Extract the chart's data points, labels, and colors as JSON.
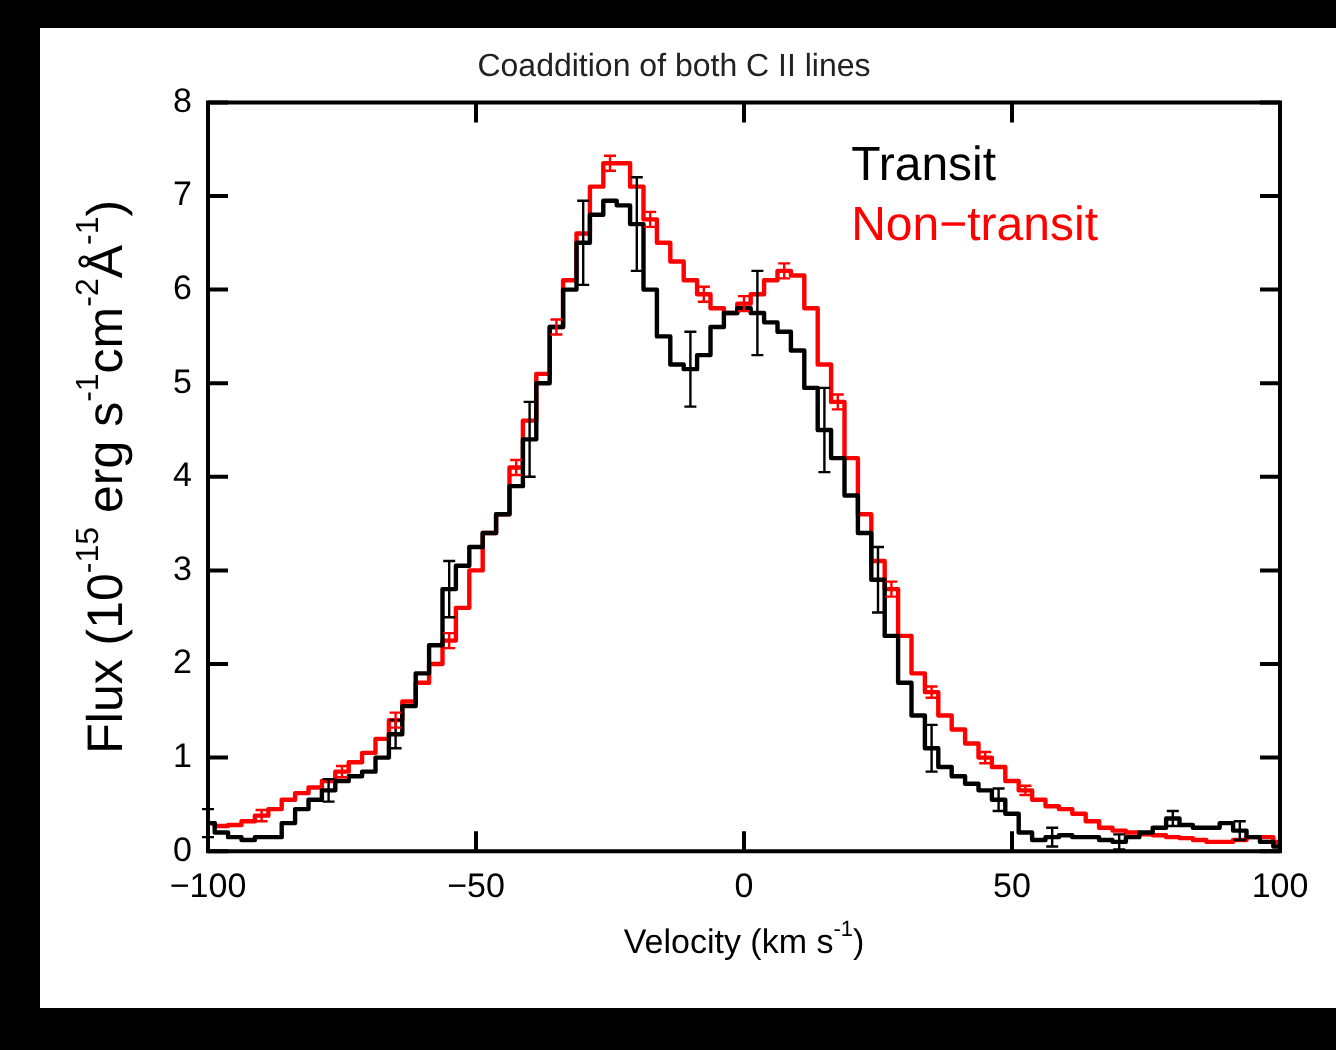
{
  "chart_data": {
    "type": "step",
    "title": "Coaddition of both C II lines",
    "xlabel": "Velocity (km s$^{-1}$)",
    "ylabel": "Flux (10$^{-15}$ erg s$^{-1}$cm$^{-2}$Å$^{-1}$)",
    "x": [
      -100,
      -97.5,
      -95,
      -92.5,
      -90,
      -87.5,
      -85,
      -82.5,
      -80,
      -77.5,
      -75,
      -72.5,
      -70,
      -67.5,
      -65,
      -62.5,
      -60,
      -57.5,
      -55,
      -52.5,
      -50,
      -47.5,
      -45,
      -42.5,
      -40,
      -37.5,
      -35,
      -32.5,
      -30,
      -27.5,
      -25,
      -22.5,
      -20,
      -17.5,
      -15,
      -12.5,
      -10,
      -7.5,
      -5,
      -2.5,
      0,
      2.5,
      5,
      7.5,
      10,
      12.5,
      15,
      17.5,
      20,
      22.5,
      25,
      27.5,
      30,
      32.5,
      35,
      37.5,
      40,
      42.5,
      45,
      47.5,
      50,
      52.5,
      55,
      57.5,
      60,
      62.5,
      65,
      67.5,
      70,
      72.5,
      75,
      77.5,
      80,
      82.5,
      85,
      87.5,
      90,
      92.5,
      95,
      97.5,
      100
    ],
    "series": [
      {
        "name": "Transit",
        "color": "#000000",
        "values": [
          0.3,
          0.2,
          0.15,
          0.12,
          0.15,
          0.15,
          0.3,
          0.45,
          0.55,
          0.65,
          0.75,
          0.8,
          0.85,
          1.0,
          1.25,
          1.55,
          1.9,
          2.2,
          2.8,
          3.05,
          3.25,
          3.4,
          3.6,
          3.9,
          4.4,
          5.0,
          5.6,
          6.0,
          6.5,
          6.8,
          6.95,
          6.9,
          6.7,
          6.0,
          5.5,
          5.2,
          5.15,
          5.3,
          5.6,
          5.75,
          5.8,
          5.75,
          5.65,
          5.55,
          5.35,
          4.95,
          4.5,
          4.2,
          3.8,
          3.4,
          2.9,
          2.3,
          1.8,
          1.45,
          1.1,
          0.9,
          0.8,
          0.72,
          0.65,
          0.55,
          0.4,
          0.2,
          0.12,
          0.15,
          0.17,
          0.15,
          0.15,
          0.12,
          0.1,
          0.15,
          0.2,
          0.25,
          0.35,
          0.28,
          0.25,
          0.25,
          0.3,
          0.22,
          0.15,
          0.1,
          0.05
        ],
        "errors": [
          0.15,
          null,
          null,
          null,
          null,
          null,
          null,
          null,
          null,
          0.12,
          null,
          null,
          null,
          null,
          0.15,
          null,
          null,
          null,
          0.3,
          null,
          null,
          null,
          null,
          null,
          0.4,
          null,
          null,
          null,
          0.45,
          null,
          null,
          null,
          0.5,
          null,
          null,
          null,
          0.4,
          null,
          null,
          null,
          null,
          0.45,
          null,
          null,
          null,
          null,
          0.45,
          null,
          null,
          null,
          0.35,
          null,
          null,
          null,
          0.25,
          null,
          null,
          null,
          null,
          0.12,
          null,
          null,
          null,
          0.1,
          null,
          null,
          null,
          null,
          0.08,
          null,
          null,
          null,
          0.08,
          null,
          null,
          null,
          null,
          0.1,
          null,
          null,
          null
        ]
      },
      {
        "name": "Non−transit",
        "color": "#ff0000",
        "values": [
          0.3,
          0.27,
          0.28,
          0.32,
          0.38,
          0.45,
          0.55,
          0.62,
          0.68,
          0.75,
          0.85,
          0.95,
          1.05,
          1.2,
          1.4,
          1.6,
          1.8,
          2.0,
          2.25,
          2.6,
          3.0,
          3.4,
          3.6,
          4.1,
          4.6,
          5.1,
          5.6,
          6.1,
          6.6,
          7.1,
          7.35,
          7.35,
          7.1,
          6.75,
          6.5,
          6.3,
          6.1,
          5.95,
          5.8,
          5.75,
          5.85,
          5.95,
          6.1,
          6.2,
          6.15,
          5.8,
          5.2,
          4.8,
          4.2,
          3.6,
          3.1,
          2.8,
          2.3,
          1.9,
          1.7,
          1.45,
          1.3,
          1.15,
          1.0,
          0.9,
          0.75,
          0.65,
          0.55,
          0.48,
          0.45,
          0.4,
          0.32,
          0.25,
          0.22,
          0.2,
          0.18,
          0.17,
          0.15,
          0.14,
          0.12,
          0.1,
          0.1,
          0.12,
          0.15,
          0.15,
          0.1
        ],
        "errors": [
          null,
          null,
          null,
          null,
          0.06,
          null,
          null,
          null,
          null,
          null,
          0.06,
          null,
          null,
          null,
          0.08,
          null,
          null,
          null,
          0.08,
          null,
          null,
          null,
          null,
          0.08,
          null,
          null,
          0.08,
          null,
          null,
          null,
          0.08,
          null,
          null,
          0.08,
          null,
          null,
          null,
          0.08,
          null,
          null,
          0.08,
          null,
          null,
          0.08,
          null,
          null,
          null,
          0.08,
          null,
          null,
          null,
          0.08,
          null,
          null,
          0.06,
          null,
          null,
          null,
          0.06,
          null,
          null,
          0.05,
          null,
          null,
          null,
          null,
          null,
          null,
          null,
          null,
          null,
          null,
          null,
          null,
          null,
          null,
          null,
          null,
          null,
          null,
          null
        ]
      }
    ],
    "xlim": [
      -100,
      100
    ],
    "xticks": [
      -100,
      -50,
      0,
      50,
      100
    ],
    "ylim": [
      0,
      8
    ],
    "yticks": [
      0,
      1,
      2,
      3,
      4,
      5,
      6,
      7,
      8
    ],
    "legend": "top right",
    "marker": "none",
    "line_style": "solid"
  }
}
